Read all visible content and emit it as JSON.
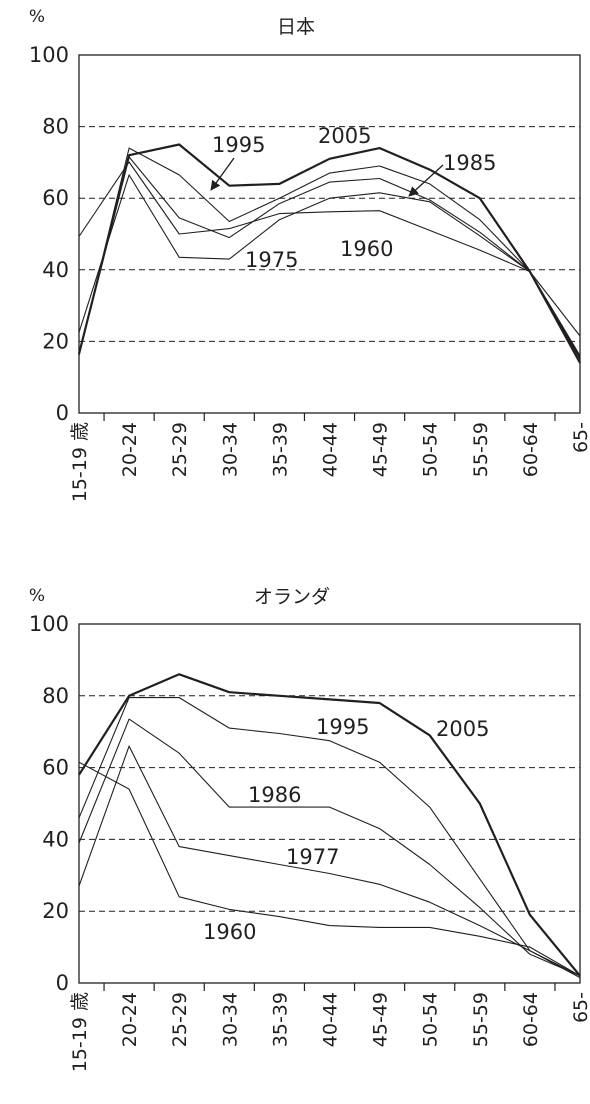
{
  "chart_data": [
    {
      "type": "line",
      "title": "日本",
      "ylabel": "%",
      "xlabel": "",
      "ylim": [
        0,
        100
      ],
      "yticks": [
        0,
        20,
        40,
        60,
        80,
        100
      ],
      "grid": "dashed horizontal at 20, 40, 60, 80",
      "categories": [
        "15-19 歳",
        "20-24",
        "25-29",
        "30-34",
        "35-39",
        "40-44",
        "45-49",
        "50-54",
        "55-59",
        "60-64",
        "65-"
      ],
      "series": [
        {
          "name": "1960",
          "values": [
            49.3,
            70.1,
            50.0,
            51.5,
            55.7,
            56.2,
            56.5,
            51.0,
            45.5,
            39.5,
            21.5
          ]
        },
        {
          "name": "1975",
          "values": [
            22.5,
            66.5,
            43.5,
            43.0,
            54.0,
            60.0,
            61.5,
            59.0,
            49.5,
            39.5,
            16.0
          ]
        },
        {
          "name": "1985",
          "values": [
            16.5,
            71.5,
            54.5,
            49.0,
            58.5,
            64.5,
            65.5,
            59.5,
            50.5,
            39.5,
            15.0
          ]
        },
        {
          "name": "1995",
          "values": [
            16.0,
            74.0,
            66.5,
            53.5,
            60.0,
            67.0,
            69.0,
            64.0,
            54.0,
            39.5,
            15.5
          ]
        },
        {
          "name": "2005",
          "values": [
            16.5,
            72.0,
            75.0,
            63.5,
            64.0,
            71.0,
            74.0,
            68.0,
            60.0,
            39.5,
            14.0
          ]
        }
      ],
      "annotations": [
        "1995",
        "2005",
        "1985",
        "1975",
        "1960"
      ]
    },
    {
      "type": "line",
      "title": "オランダ",
      "ylabel": "%",
      "xlabel": "",
      "ylim": [
        0,
        100
      ],
      "yticks": [
        0,
        20,
        40,
        60,
        80,
        100
      ],
      "grid": "dashed horizontal at 20, 40, 60, 80",
      "categories": [
        "15-19 歳",
        "20-24",
        "25-29",
        "30-34",
        "35-39",
        "40-44",
        "45-49",
        "50-54",
        "55-59",
        "60-64",
        "65-"
      ],
      "series": [
        {
          "name": "1960",
          "values": [
            61.5,
            54.0,
            24.0,
            20.5,
            18.5,
            16.0,
            15.5,
            15.5,
            13.0,
            10.0,
            2.0
          ]
        },
        {
          "name": "1977",
          "values": [
            27.0,
            66.0,
            38.0,
            35.5,
            33.0,
            30.5,
            27.5,
            22.5,
            16.0,
            9.0,
            2.0
          ]
        },
        {
          "name": "1986",
          "values": [
            39.0,
            73.5,
            64.0,
            49.0,
            49.0,
            49.0,
            43.0,
            33.0,
            21.0,
            8.0,
            2.0
          ]
        },
        {
          "name": "1995",
          "values": [
            46.0,
            79.5,
            79.5,
            71.0,
            69.5,
            67.5,
            61.5,
            49.0,
            29.0,
            9.0,
            1.5
          ]
        },
        {
          "name": "2005",
          "values": [
            58.0,
            80.0,
            86.0,
            81.0,
            80.0,
            79.0,
            78.0,
            69.0,
            50.0,
            19.0,
            2.0
          ]
        }
      ],
      "annotations": [
        "1995",
        "2005",
        "1986",
        "1977",
        "1960"
      ]
    }
  ]
}
